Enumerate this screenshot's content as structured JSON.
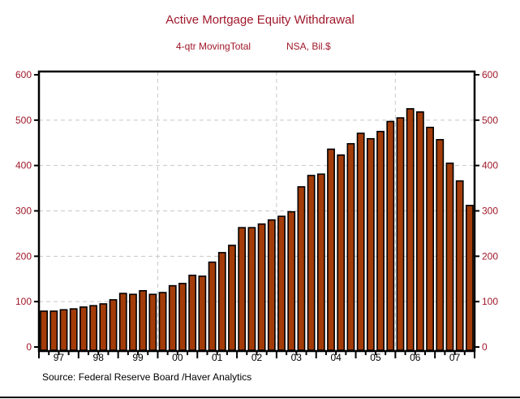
{
  "chart_data": {
    "type": "bar",
    "title": "Active Mortgage Equity Withdrawal",
    "subtitle_left": "4-qtr MovingTotal",
    "subtitle_right": "NSA, Bil.$",
    "source": "Source:  Federal Reserve Board /Haver Analytics",
    "xlabel": "",
    "ylabel": "",
    "ylim": [
      0,
      600
    ],
    "yticks": [
      "0",
      "100",
      "200",
      "300",
      "400",
      "500",
      "600"
    ],
    "grid": true,
    "year_labels": [
      "97",
      "98",
      "99",
      "00",
      "01",
      "02",
      "03",
      "04",
      "05",
      "06",
      "07"
    ],
    "categories": [
      "1997Q1",
      "1997Q2",
      "1997Q3",
      "1997Q4",
      "1998Q1",
      "1998Q2",
      "1998Q3",
      "1998Q4",
      "1999Q1",
      "1999Q2",
      "1999Q3",
      "1999Q4",
      "2000Q1",
      "2000Q2",
      "2000Q3",
      "2000Q4",
      "2001Q1",
      "2001Q2",
      "2001Q3",
      "2001Q4",
      "2002Q1",
      "2002Q2",
      "2002Q3",
      "2002Q4",
      "2003Q1",
      "2003Q2",
      "2003Q3",
      "2003Q4",
      "2004Q1",
      "2004Q2",
      "2004Q3",
      "2004Q4",
      "2005Q1",
      "2005Q2",
      "2005Q3",
      "2005Q4",
      "2006Q1",
      "2006Q2",
      "2006Q3",
      "2006Q4",
      "2007Q1",
      "2007Q2",
      "2007Q3",
      "2007Q4"
    ],
    "values": [
      79,
      79,
      82,
      84,
      88,
      91,
      95,
      104,
      118,
      116,
      124,
      116,
      120,
      135,
      140,
      158,
      156,
      187,
      208,
      224,
      263,
      263,
      271,
      280,
      288,
      298,
      353,
      378,
      381,
      436,
      423,
      448,
      471,
      459,
      475,
      497,
      505,
      525,
      518,
      484,
      457,
      405,
      366,
      312
    ],
    "bar_color": "#a33c08",
    "axis_label_color": "#a0182a"
  }
}
